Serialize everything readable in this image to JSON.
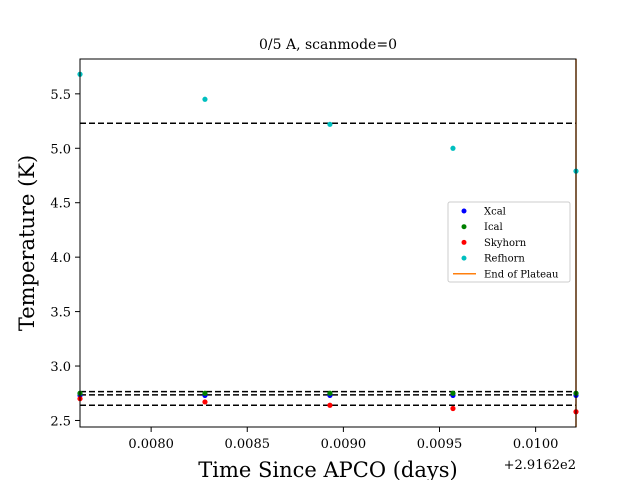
{
  "chart_data": {
    "type": "scatter",
    "title": "0/5 A, scanmode=0",
    "xlabel": "Time Since APCO (days)",
    "ylabel": "Temperature (K)",
    "x_offset_label": "+2.9162e2",
    "xlim": [
      0.00763,
      0.01021
    ],
    "ylim": [
      2.44,
      5.82
    ],
    "xticks": [
      0.008,
      0.0085,
      0.009,
      0.0095,
      0.01
    ],
    "xtick_labels": [
      "0.0080",
      "0.0085",
      "0.0090",
      "0.0095",
      "0.0100"
    ],
    "yticks": [
      2.5,
      3.0,
      3.5,
      4.0,
      4.5,
      5.0,
      5.5
    ],
    "ytick_labels": [
      "2.5",
      "3.0",
      "3.5",
      "4.0",
      "4.5",
      "5.0",
      "5.5"
    ],
    "series": [
      {
        "name": "Xcal",
        "color": "#0000ff",
        "x": [
          0.00763,
          0.00828,
          0.00893,
          0.00957,
          0.01021
        ],
        "y": [
          2.73,
          2.73,
          2.73,
          2.73,
          2.73
        ]
      },
      {
        "name": "Ical",
        "color": "#008000",
        "x": [
          0.00763,
          0.00828,
          0.00893,
          0.00957,
          0.01021
        ],
        "y": [
          2.75,
          2.75,
          2.75,
          2.75,
          2.75
        ]
      },
      {
        "name": "Skyhorn",
        "color": "#ff0000",
        "x": [
          0.00763,
          0.00828,
          0.00893,
          0.00957,
          0.01021
        ],
        "y": [
          2.7,
          2.67,
          2.64,
          2.61,
          2.58
        ]
      },
      {
        "name": "Refhorn",
        "color": "#00bfbf",
        "x": [
          0.00763,
          0.00828,
          0.00893,
          0.00957,
          0.01021
        ],
        "y": [
          5.68,
          5.45,
          5.22,
          5.0,
          4.79
        ]
      }
    ],
    "hlines": [
      5.23,
      2.765,
      2.735,
      2.64
    ],
    "vline": {
      "name": "End of Plateau",
      "x": 0.01021,
      "color": "#ff7f0e"
    },
    "legend_position": "center-right"
  }
}
